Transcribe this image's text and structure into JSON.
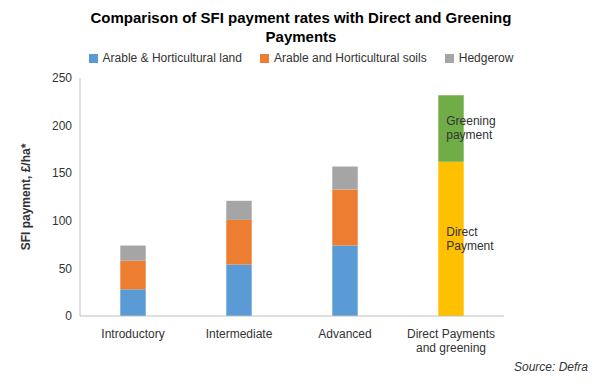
{
  "chart_data": {
    "type": "bar",
    "title": "Comparison of SFI payment rates with Direct and Greening Payments",
    "subtitle": "Source: Defra",
    "y_label": "SFI payment, £/ha*",
    "categories": [
      "Introductory",
      "Intermediate",
      "Advanced",
      "Direct Payments and greening"
    ],
    "stacked": true,
    "grid": false,
    "legend": "top",
    "series": [
      {
        "name": "Arable & Horticultural land",
        "color": "#5b9bd5",
        "values": [
          28,
          54,
          74,
          null
        ]
      },
      {
        "name": "Arable and Horticultural soils",
        "color": "#ed7d31",
        "values": [
          30,
          47,
          59,
          null
        ]
      },
      {
        "name": "Hedgerow",
        "color": "#a5a5a5",
        "values": [
          16,
          20,
          24,
          null
        ]
      },
      {
        "name": "Direct Payment",
        "color": "#ffc000",
        "values": [
          null,
          null,
          null,
          162
        ]
      },
      {
        "name": "Greening payment",
        "color": "#70ad47",
        "values": [
          null,
          null,
          null,
          70
        ]
      }
    ],
    "ylim": [
      0,
      250
    ],
    "yticks": [
      0,
      50,
      100,
      150,
      200,
      250
    ]
  }
}
